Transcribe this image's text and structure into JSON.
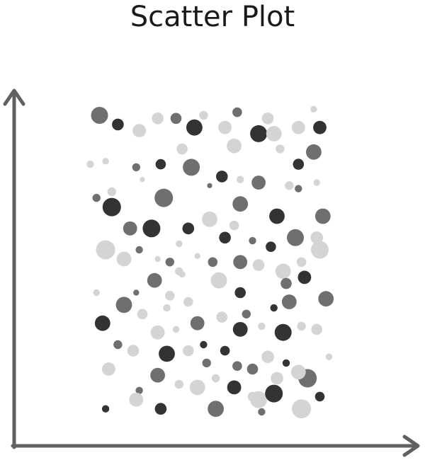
{
  "chart_data": {
    "type": "scatter",
    "title": "Scatter Plot",
    "xlabel": "",
    "ylabel": "",
    "grid": false,
    "legend": "none",
    "xlim": [
      0,
      100
    ],
    "ylim": [
      0,
      100
    ],
    "tone_colors": {
      "light": "#d4d4d4",
      "medium": "#6f6f6f",
      "dark": "#333333"
    },
    "point_fields": [
      "x",
      "y",
      "size",
      "tone"
    ],
    "points": [
      [
        14,
        97,
        2.3,
        "medium"
      ],
      [
        20,
        94,
        1.6,
        "dark"
      ],
      [
        27,
        92,
        1.8,
        "light"
      ],
      [
        33,
        96,
        1.6,
        "light"
      ],
      [
        39,
        96,
        1.5,
        "medium"
      ],
      [
        45,
        93,
        2.2,
        "dark"
      ],
      [
        48,
        97,
        1.2,
        "light"
      ],
      [
        55,
        93,
        1.8,
        "light"
      ],
      [
        59,
        98,
        1.3,
        "medium"
      ],
      [
        66,
        91,
        2.3,
        "dark"
      ],
      [
        69,
        96,
        1.6,
        "light"
      ],
      [
        71,
        91,
        2.1,
        "light"
      ],
      [
        79,
        93,
        1.8,
        "light"
      ],
      [
        86,
        93,
        1.8,
        "dark"
      ],
      [
        84,
        99,
        0.9,
        "light"
      ],
      [
        41,
        86,
        1.5,
        "light"
      ],
      [
        58,
        87,
        2.0,
        "light"
      ],
      [
        73,
        86,
        1.2,
        "light"
      ],
      [
        84,
        85,
        2.1,
        "medium"
      ],
      [
        79,
        81,
        1.5,
        "dark"
      ],
      [
        11,
        81,
        1.0,
        "light"
      ],
      [
        16,
        82,
        0.9,
        "light"
      ],
      [
        26,
        80,
        1.1,
        "medium"
      ],
      [
        34,
        81,
        1.4,
        "dark"
      ],
      [
        44,
        80,
        2.3,
        "medium"
      ],
      [
        54,
        77,
        1.6,
        "dark"
      ],
      [
        60,
        76,
        1.0,
        "light"
      ],
      [
        66,
        75,
        1.9,
        "medium"
      ],
      [
        76,
        74,
        1.2,
        "light"
      ],
      [
        79,
        73,
        1.0,
        "medium"
      ],
      [
        85,
        75,
        0.9,
        "light"
      ],
      [
        50,
        74,
        0.7,
        "medium"
      ],
      [
        28,
        76,
        0.7,
        "light"
      ],
      [
        18,
        72,
        1.2,
        "light"
      ],
      [
        13,
        70,
        1.1,
        "medium"
      ],
      [
        18,
        67,
        2.5,
        "dark"
      ],
      [
        35,
        70,
        2.5,
        "medium"
      ],
      [
        60,
        68,
        2.1,
        "medium"
      ],
      [
        72,
        64,
        2.1,
        "dark"
      ],
      [
        87,
        64,
        2.1,
        "medium"
      ],
      [
        24,
        60,
        1.9,
        "medium"
      ],
      [
        31,
        60,
        2.4,
        "dark"
      ],
      [
        43,
        60,
        1.6,
        "dark"
      ],
      [
        50,
        63,
        2.1,
        "light"
      ],
      [
        58,
        61,
        1.3,
        "light"
      ],
      [
        55,
        57,
        1.6,
        "dark"
      ],
      [
        64,
        56,
        1.0,
        "medium"
      ],
      [
        70,
        54,
        1.4,
        "dark"
      ],
      [
        78,
        57,
        2.3,
        "medium"
      ],
      [
        85,
        57,
        1.7,
        "light"
      ],
      [
        16,
        53,
        2.6,
        "light"
      ],
      [
        22,
        50,
        2.0,
        "light"
      ],
      [
        27,
        53,
        1.0,
        "medium"
      ],
      [
        33,
        50,
        0.8,
        "light"
      ],
      [
        37,
        49,
        1.2,
        "medium"
      ],
      [
        40,
        55,
        0.9,
        "light"
      ],
      [
        46,
        51,
        0.8,
        "light"
      ],
      [
        51,
        49,
        1.3,
        "medium"
      ],
      [
        60,
        49,
        1.9,
        "medium"
      ],
      [
        66,
        48,
        1.6,
        "light"
      ],
      [
        74,
        46,
        2.1,
        "light"
      ],
      [
        80,
        49,
        1.3,
        "light"
      ],
      [
        86,
        53,
        2.4,
        "light"
      ],
      [
        40,
        46,
        1.1,
        "light"
      ],
      [
        32,
        43,
        2.0,
        "medium"
      ],
      [
        37,
        38,
        1.3,
        "light"
      ],
      [
        41,
        45,
        0.9,
        "light"
      ],
      [
        53,
        43,
        2.2,
        "light"
      ],
      [
        60,
        39,
        1.5,
        "dark"
      ],
      [
        75,
        42,
        1.5,
        "medium"
      ],
      [
        81,
        44,
        1.8,
        "dark"
      ],
      [
        88,
        37,
        2.1,
        "medium"
      ],
      [
        13,
        39,
        0.9,
        "light"
      ],
      [
        22,
        35,
        2.2,
        "medium"
      ],
      [
        26,
        39,
        0.8,
        "medium"
      ],
      [
        15,
        29,
        2.1,
        "dark"
      ],
      [
        28,
        32,
        1.4,
        "light"
      ],
      [
        36,
        34,
        1.0,
        "light"
      ],
      [
        43,
        36,
        1.3,
        "light"
      ],
      [
        46,
        29,
        1.9,
        "medium"
      ],
      [
        39,
        27,
        0.9,
        "light"
      ],
      [
        54,
        31,
        1.5,
        "light"
      ],
      [
        62,
        32,
        1.2,
        "medium"
      ],
      [
        67,
        28,
        1.0,
        "light"
      ],
      [
        71,
        34,
        1.0,
        "dark"
      ],
      [
        74,
        26,
        2.3,
        "dark"
      ],
      [
        76,
        36,
        2.0,
        "medium"
      ],
      [
        60,
        27,
        2.0,
        "dark"
      ],
      [
        80,
        28,
        1.2,
        "light"
      ],
      [
        85,
        27,
        1.5,
        "light"
      ],
      [
        48,
        22,
        1.0,
        "dark"
      ],
      [
        33,
        26,
        1.9,
        "light"
      ],
      [
        20,
        22,
        1.2,
        "medium"
      ],
      [
        25,
        20,
        1.6,
        "light"
      ],
      [
        36,
        19,
        2.2,
        "dark"
      ],
      [
        43,
        20,
        1.5,
        "light"
      ],
      [
        49,
        16,
        1.2,
        "medium"
      ],
      [
        52,
        11,
        1.1,
        "light"
      ],
      [
        55,
        20,
        1.3,
        "dark"
      ],
      [
        59,
        15,
        1.3,
        "medium"
      ],
      [
        64,
        14,
        1.5,
        "medium"
      ],
      [
        69,
        18,
        1.7,
        "light"
      ],
      [
        72,
        11,
        1.7,
        "light"
      ],
      [
        75,
        16,
        1.0,
        "dark"
      ],
      [
        82,
        11,
        2.5,
        "medium"
      ],
      [
        89,
        18,
        0.9,
        "light"
      ],
      [
        79,
        13,
        2.0,
        "light"
      ],
      [
        17,
        14,
        1.8,
        "light"
      ],
      [
        27,
        7,
        1.0,
        "medium"
      ],
      [
        33,
        12,
        2.0,
        "medium"
      ],
      [
        40,
        9,
        1.2,
        "light"
      ],
      [
        46,
        8,
        2.1,
        "light"
      ],
      [
        58,
        8,
        1.9,
        "dark"
      ],
      [
        64,
        5,
        1.3,
        "light"
      ],
      [
        66,
        4,
        2.3,
        "light"
      ],
      [
        71,
        6,
        2.4,
        "dark"
      ],
      [
        86,
        5,
        1.3,
        "dark"
      ],
      [
        26,
        4,
        1.9,
        "light"
      ],
      [
        16,
        1,
        1.0,
        "dark"
      ],
      [
        34,
        1,
        1.6,
        "dark"
      ],
      [
        52,
        1,
        2.2,
        "medium"
      ],
      [
        67,
        0,
        1.0,
        "medium"
      ],
      [
        80,
        1,
        2.6,
        "light"
      ]
    ]
  }
}
